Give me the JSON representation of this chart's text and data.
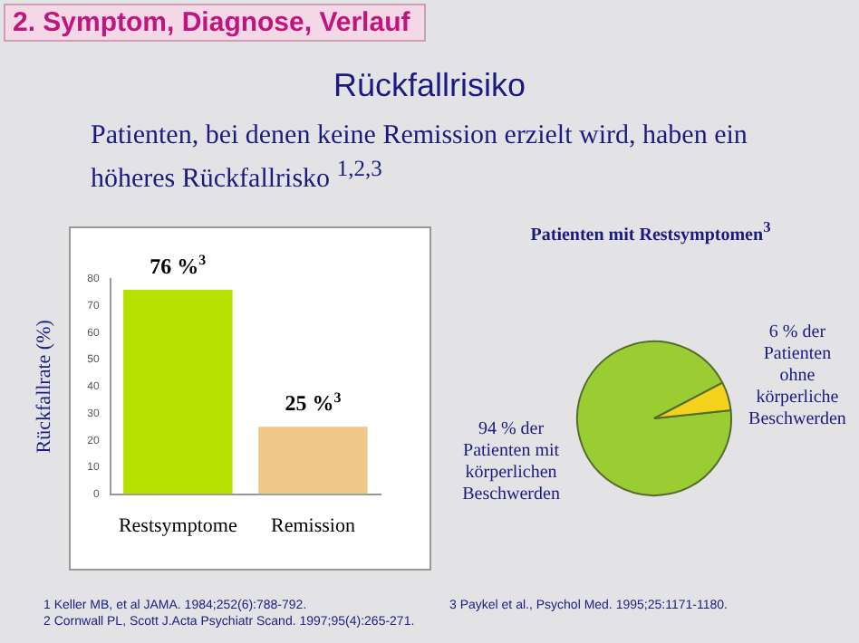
{
  "chart_data": [
    {
      "type": "other",
      "title": "Rückfallrisiko",
      "subtitle": "Patienten, bei denen keine Remission erzielt wird, haben ein höheres Rückfallrisko $^{1,2,3}$",
      "annotations": [
        "2.  Symptom, Diagnose, Verlauf",
        "1 Keller MB, et al JAMA. 1984;252(6):788-792.",
        "2 Cornwall PL, Scott J.Acta Psychiatr Scand. 1997;95(4):265-271.",
        "3 Paykel et al., Psychol Med. 1995;25:1171-1180."
      ]
    },
    {
      "type": "bar",
      "categories": [
        "Restsymptome",
        "Remission"
      ],
      "values": [
        76,
        25
      ],
      "colors": [
        "#b5e000",
        "#eec98a"
      ],
      "value_labels": [
        "76 %$^{3}$",
        "25 %$^{3}$"
      ],
      "ylabel": "Rückfallrate (%)",
      "ylim": [
        0,
        80
      ],
      "yticks": [
        0,
        10,
        20,
        30,
        40,
        50,
        60,
        70,
        80
      ]
    },
    {
      "type": "pie",
      "title": "Patienten mit Restsymptomen$^{3}$",
      "categories": [
        "94 % der Patienten mit körperlichen Beschwerden",
        "6 % der Patienten ohne körperliche Beschwerden"
      ],
      "values": [
        94,
        6
      ],
      "colors": [
        "#9acd32",
        "#f2d21a"
      ]
    }
  ]
}
